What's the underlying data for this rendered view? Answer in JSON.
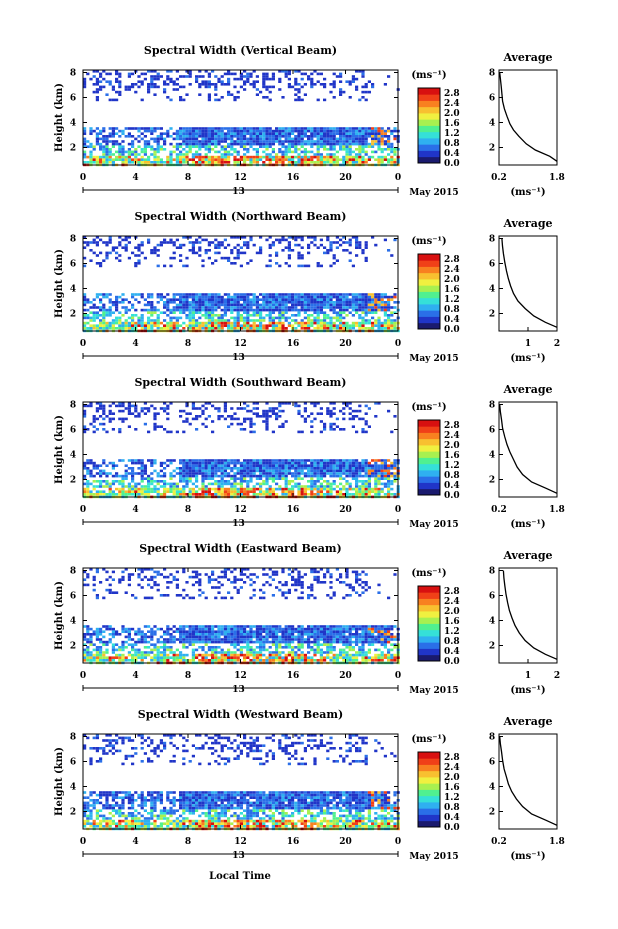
{
  "figure": {
    "x_axis_label": "Local Time",
    "date_label": "May 2015",
    "day_label": "13",
    "height_axis_label": "Height (km)",
    "avg_title": "Average",
    "unit_label": "(ms⁻¹)"
  },
  "colorscale": [
    "#1a1a6e",
    "#2035c8",
    "#2a6fe8",
    "#2fb0f0",
    "#35e0d8",
    "#50f090",
    "#a8f050",
    "#f0f040",
    "#f8c030",
    "#f88020",
    "#f04018",
    "#d81010"
  ],
  "chart_data": [
    {
      "type": "heatmap",
      "title": "Spectral Width (Vertical Beam)",
      "ylabel": "Height (km)",
      "x_ticks": [
        "0",
        "4",
        "8",
        "12",
        "16",
        "20",
        "0"
      ],
      "y_ticks": [
        "2",
        "4",
        "6",
        "8"
      ],
      "xlim": [
        0,
        24
      ],
      "ylim": [
        0.6,
        8.2
      ],
      "colorbar_ticks": [
        "0.0",
        "0.4",
        "0.8",
        "1.2",
        "1.6",
        "2.0",
        "2.4",
        "2.8"
      ],
      "colorbar_range": [
        0.0,
        3.0
      ],
      "average": {
        "x_ticks": [
          "0.2",
          "1.8"
        ],
        "xlim": [
          0.2,
          1.8
        ],
        "y_ticks": [
          "2",
          "4",
          "6",
          "8"
        ],
        "x": [
          1.8,
          1.6,
          1.2,
          0.95,
          0.75,
          0.6,
          0.5,
          0.42,
          0.35,
          0.3,
          0.28,
          0.26,
          0.24,
          0.22
        ],
        "y": [
          0.9,
          1.3,
          1.8,
          2.3,
          2.9,
          3.4,
          3.9,
          4.5,
          5.1,
          5.7,
          6.3,
          6.9,
          7.5,
          8.0
        ]
      }
    },
    {
      "type": "heatmap",
      "title": "Spectral Width (Northward Beam)",
      "ylabel": "Height (km)",
      "x_ticks": [
        "0",
        "4",
        "8",
        "12",
        "16",
        "20",
        "0"
      ],
      "y_ticks": [
        "2",
        "4",
        "6",
        "8"
      ],
      "xlim": [
        0,
        24
      ],
      "ylim": [
        0.6,
        8.2
      ],
      "colorbar_ticks": [
        "0.0",
        "0.4",
        "0.8",
        "1.2",
        "1.6",
        "2.0",
        "2.4",
        "2.8"
      ],
      "colorbar_range": [
        0.0,
        3.0
      ],
      "average": {
        "x_ticks": [
          "1",
          "2"
        ],
        "xlim": [
          0,
          2
        ],
        "y_ticks": [
          "2",
          "4",
          "6",
          "8"
        ],
        "x": [
          2.0,
          1.6,
          1.2,
          0.9,
          0.65,
          0.5,
          0.4,
          0.32,
          0.26,
          0.2,
          0.15,
          0.12,
          0.1
        ],
        "y": [
          0.9,
          1.3,
          1.8,
          2.4,
          3.0,
          3.6,
          4.2,
          4.8,
          5.4,
          6.1,
          6.8,
          7.4,
          8.0
        ]
      }
    },
    {
      "type": "heatmap",
      "title": "Spectral Width (Southward Beam)",
      "ylabel": "Height (km)",
      "x_ticks": [
        "0",
        "4",
        "8",
        "12",
        "16",
        "20",
        "0"
      ],
      "y_ticks": [
        "2",
        "4",
        "6",
        "8"
      ],
      "xlim": [
        0,
        24
      ],
      "ylim": [
        0.6,
        8.2
      ],
      "colorbar_ticks": [
        "0.0",
        "0.4",
        "0.8",
        "1.2",
        "1.6",
        "2.0",
        "2.4",
        "2.8"
      ],
      "colorbar_range": [
        0.0,
        3.0
      ],
      "average": {
        "x_ticks": [
          "0.2",
          "1.8"
        ],
        "xlim": [
          0.2,
          1.8
        ],
        "y_ticks": [
          "2",
          "4",
          "6",
          "8"
        ],
        "x": [
          1.8,
          1.5,
          1.1,
          0.85,
          0.7,
          0.6,
          0.5,
          0.42,
          0.36,
          0.3,
          0.27,
          0.24,
          0.22
        ],
        "y": [
          0.9,
          1.3,
          1.8,
          2.4,
          3.0,
          3.6,
          4.2,
          4.8,
          5.4,
          6.1,
          6.8,
          7.4,
          8.0
        ]
      }
    },
    {
      "type": "heatmap",
      "title": "Spectral Width (Eastward Beam)",
      "ylabel": "Height (km)",
      "x_ticks": [
        "0",
        "4",
        "8",
        "12",
        "16",
        "20",
        "0"
      ],
      "y_ticks": [
        "2",
        "4",
        "6",
        "8"
      ],
      "xlim": [
        0,
        24
      ],
      "ylim": [
        0.6,
        8.2
      ],
      "colorbar_ticks": [
        "0.0",
        "0.4",
        "0.8",
        "1.2",
        "1.6",
        "2.0",
        "2.4",
        "2.8"
      ],
      "colorbar_range": [
        0.0,
        3.0
      ],
      "average": {
        "x_ticks": [
          "1",
          "2"
        ],
        "xlim": [
          0,
          2
        ],
        "y_ticks": [
          "2",
          "4",
          "6",
          "8"
        ],
        "x": [
          2.0,
          1.6,
          1.2,
          0.9,
          0.7,
          0.55,
          0.45,
          0.36,
          0.3,
          0.24,
          0.2,
          0.17,
          0.15
        ],
        "y": [
          0.9,
          1.3,
          1.8,
          2.4,
          3.0,
          3.6,
          4.2,
          4.8,
          5.4,
          6.1,
          6.8,
          7.4,
          8.0
        ]
      }
    },
    {
      "type": "heatmap",
      "title": "Spectral Width (Westward Beam)",
      "ylabel": "Height (km)",
      "x_ticks": [
        "0",
        "4",
        "8",
        "12",
        "16",
        "20",
        "0"
      ],
      "y_ticks": [
        "2",
        "4",
        "6",
        "8"
      ],
      "xlim": [
        0,
        24
      ],
      "ylim": [
        0.6,
        8.2
      ],
      "colorbar_ticks": [
        "0.0",
        "0.4",
        "0.8",
        "1.2",
        "1.6",
        "2.0",
        "2.4",
        "2.8"
      ],
      "colorbar_range": [
        0.0,
        3.0
      ],
      "average": {
        "x_ticks": [
          "0.2",
          "1.8"
        ],
        "xlim": [
          0.2,
          1.8
        ],
        "y_ticks": [
          "2",
          "4",
          "6",
          "8"
        ],
        "x": [
          1.8,
          1.5,
          1.1,
          0.85,
          0.68,
          0.55,
          0.46,
          0.4,
          0.34,
          0.3,
          0.27,
          0.24,
          0.22
        ],
        "y": [
          0.9,
          1.3,
          1.8,
          2.4,
          3.0,
          3.6,
          4.2,
          4.8,
          5.4,
          6.1,
          6.8,
          7.4,
          8.0
        ]
      }
    }
  ]
}
